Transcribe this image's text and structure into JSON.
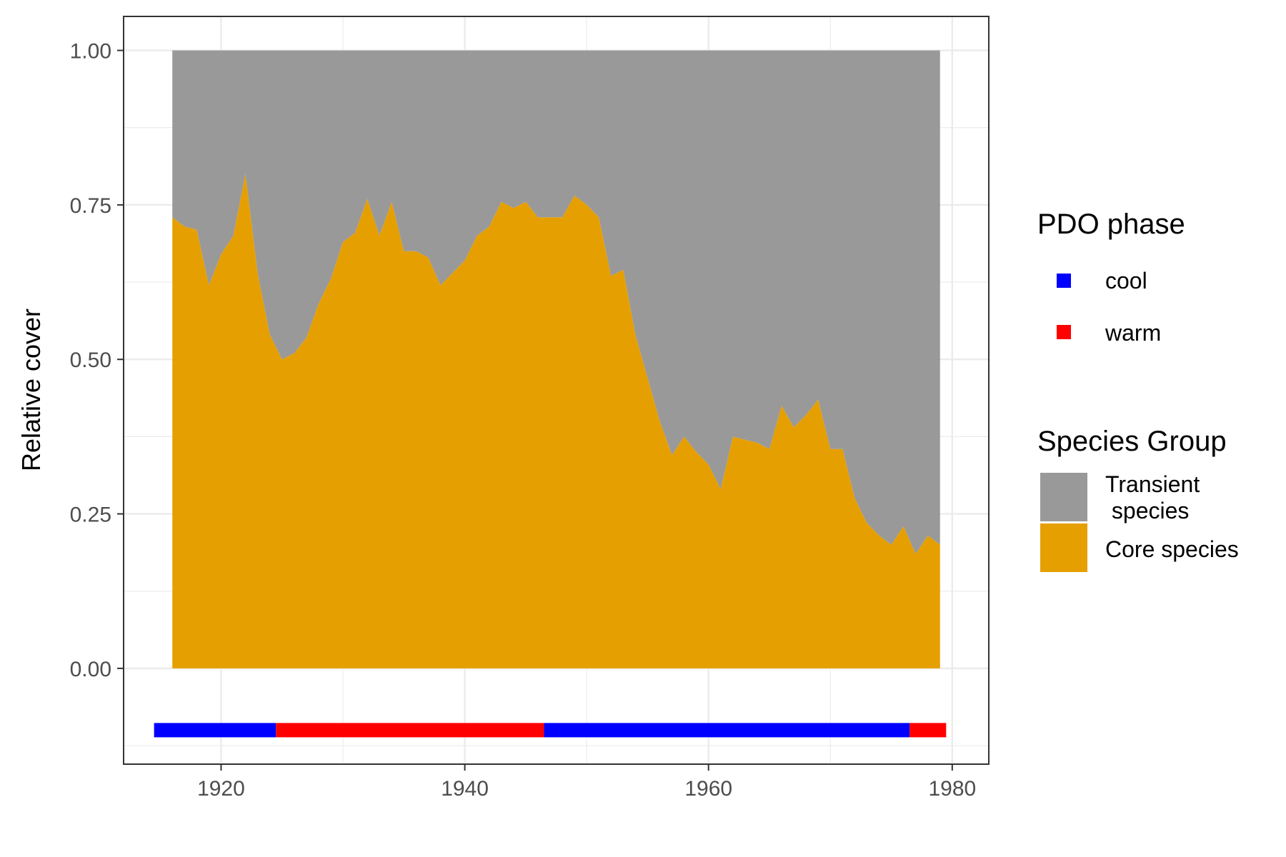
{
  "chart_data": {
    "type": "area",
    "title": "",
    "xlabel": "",
    "ylabel": "Relative cover",
    "xlim": [
      1912,
      1983
    ],
    "ylim": [
      -0.155,
      1.055
    ],
    "x_ticks": [
      {
        "value": 1920,
        "label": "1920"
      },
      {
        "value": 1940,
        "label": "1940"
      },
      {
        "value": 1960,
        "label": "1960"
      },
      {
        "value": 1980,
        "label": "1980"
      }
    ],
    "y_ticks": [
      {
        "value": 0.0,
        "label": "0.00"
      },
      {
        "value": 0.25,
        "label": "0.25"
      },
      {
        "value": 0.5,
        "label": "0.50"
      },
      {
        "value": 0.75,
        "label": "0.75"
      },
      {
        "value": 1.0,
        "label": "1.00"
      }
    ],
    "grid": true,
    "legend_position": "right",
    "x": [
      1916,
      1917,
      1918,
      1919,
      1920,
      1921,
      1922,
      1923,
      1924,
      1925,
      1926,
      1927,
      1928,
      1929,
      1930,
      1931,
      1932,
      1933,
      1934,
      1935,
      1936,
      1937,
      1938,
      1939,
      1940,
      1941,
      1942,
      1943,
      1944,
      1945,
      1946,
      1947,
      1948,
      1949,
      1950,
      1951,
      1952,
      1953,
      1954,
      1955,
      1956,
      1957,
      1958,
      1959,
      1960,
      1961,
      1962,
      1963,
      1964,
      1965,
      1966,
      1967,
      1968,
      1969,
      1970,
      1971,
      1972,
      1973,
      1974,
      1975,
      1976,
      1977,
      1978,
      1979
    ],
    "series": [
      {
        "name": "Transient\n species",
        "color": "#999999",
        "values": [
          0.27,
          0.285,
          0.29,
          0.38,
          0.33,
          0.3,
          0.2,
          0.36,
          0.46,
          0.5,
          0.49,
          0.465,
          0.41,
          0.37,
          0.31,
          0.295,
          0.24,
          0.3,
          0.245,
          0.325,
          0.325,
          0.335,
          0.38,
          0.36,
          0.34,
          0.3,
          0.285,
          0.245,
          0.255,
          0.245,
          0.27,
          0.27,
          0.27,
          0.235,
          0.25,
          0.27,
          0.365,
          0.355,
          0.46,
          0.53,
          0.6,
          0.655,
          0.625,
          0.65,
          0.67,
          0.71,
          0.625,
          0.63,
          0.635,
          0.645,
          0.575,
          0.61,
          0.59,
          0.565,
          0.645,
          0.645,
          0.725,
          0.765,
          0.785,
          0.8,
          0.77,
          0.815,
          0.785,
          0.8
        ]
      },
      {
        "name": "Core species",
        "color": "#E69F00",
        "values": [
          0.73,
          0.715,
          0.71,
          0.62,
          0.67,
          0.7,
          0.8,
          0.64,
          0.54,
          0.5,
          0.51,
          0.535,
          0.59,
          0.63,
          0.69,
          0.705,
          0.76,
          0.7,
          0.755,
          0.675,
          0.675,
          0.665,
          0.62,
          0.64,
          0.66,
          0.7,
          0.715,
          0.755,
          0.745,
          0.755,
          0.73,
          0.73,
          0.73,
          0.765,
          0.75,
          0.73,
          0.635,
          0.645,
          0.54,
          0.47,
          0.4,
          0.345,
          0.375,
          0.35,
          0.33,
          0.29,
          0.375,
          0.37,
          0.365,
          0.355,
          0.425,
          0.39,
          0.41,
          0.435,
          0.355,
          0.355,
          0.275,
          0.235,
          0.215,
          0.2,
          0.23,
          0.185,
          0.215,
          0.2
        ]
      }
    ],
    "pdo_y": -0.1,
    "pdo_segments": [
      {
        "phase": "cool",
        "start": 1914.5,
        "end": 1924.5
      },
      {
        "phase": "warm",
        "start": 1924.5,
        "end": 1946.5
      },
      {
        "phase": "cool",
        "start": 1946.5,
        "end": 1976.5
      },
      {
        "phase": "warm",
        "start": 1976.5,
        "end": 1979.5
      }
    ],
    "pdo_colors": {
      "cool": "#0000FF",
      "warm": "#FF0000"
    }
  },
  "legend": {
    "pdo_title": "PDO phase",
    "pdo_items": [
      {
        "label": "cool",
        "color": "#0000FF"
      },
      {
        "label": "warm",
        "color": "#FF0000"
      }
    ],
    "species_title": "Species Group",
    "species_items": [
      {
        "line1": "Transient",
        "line2": " species",
        "color": "#999999"
      },
      {
        "line1": "Core species",
        "line2": "",
        "color": "#E69F00"
      }
    ]
  }
}
